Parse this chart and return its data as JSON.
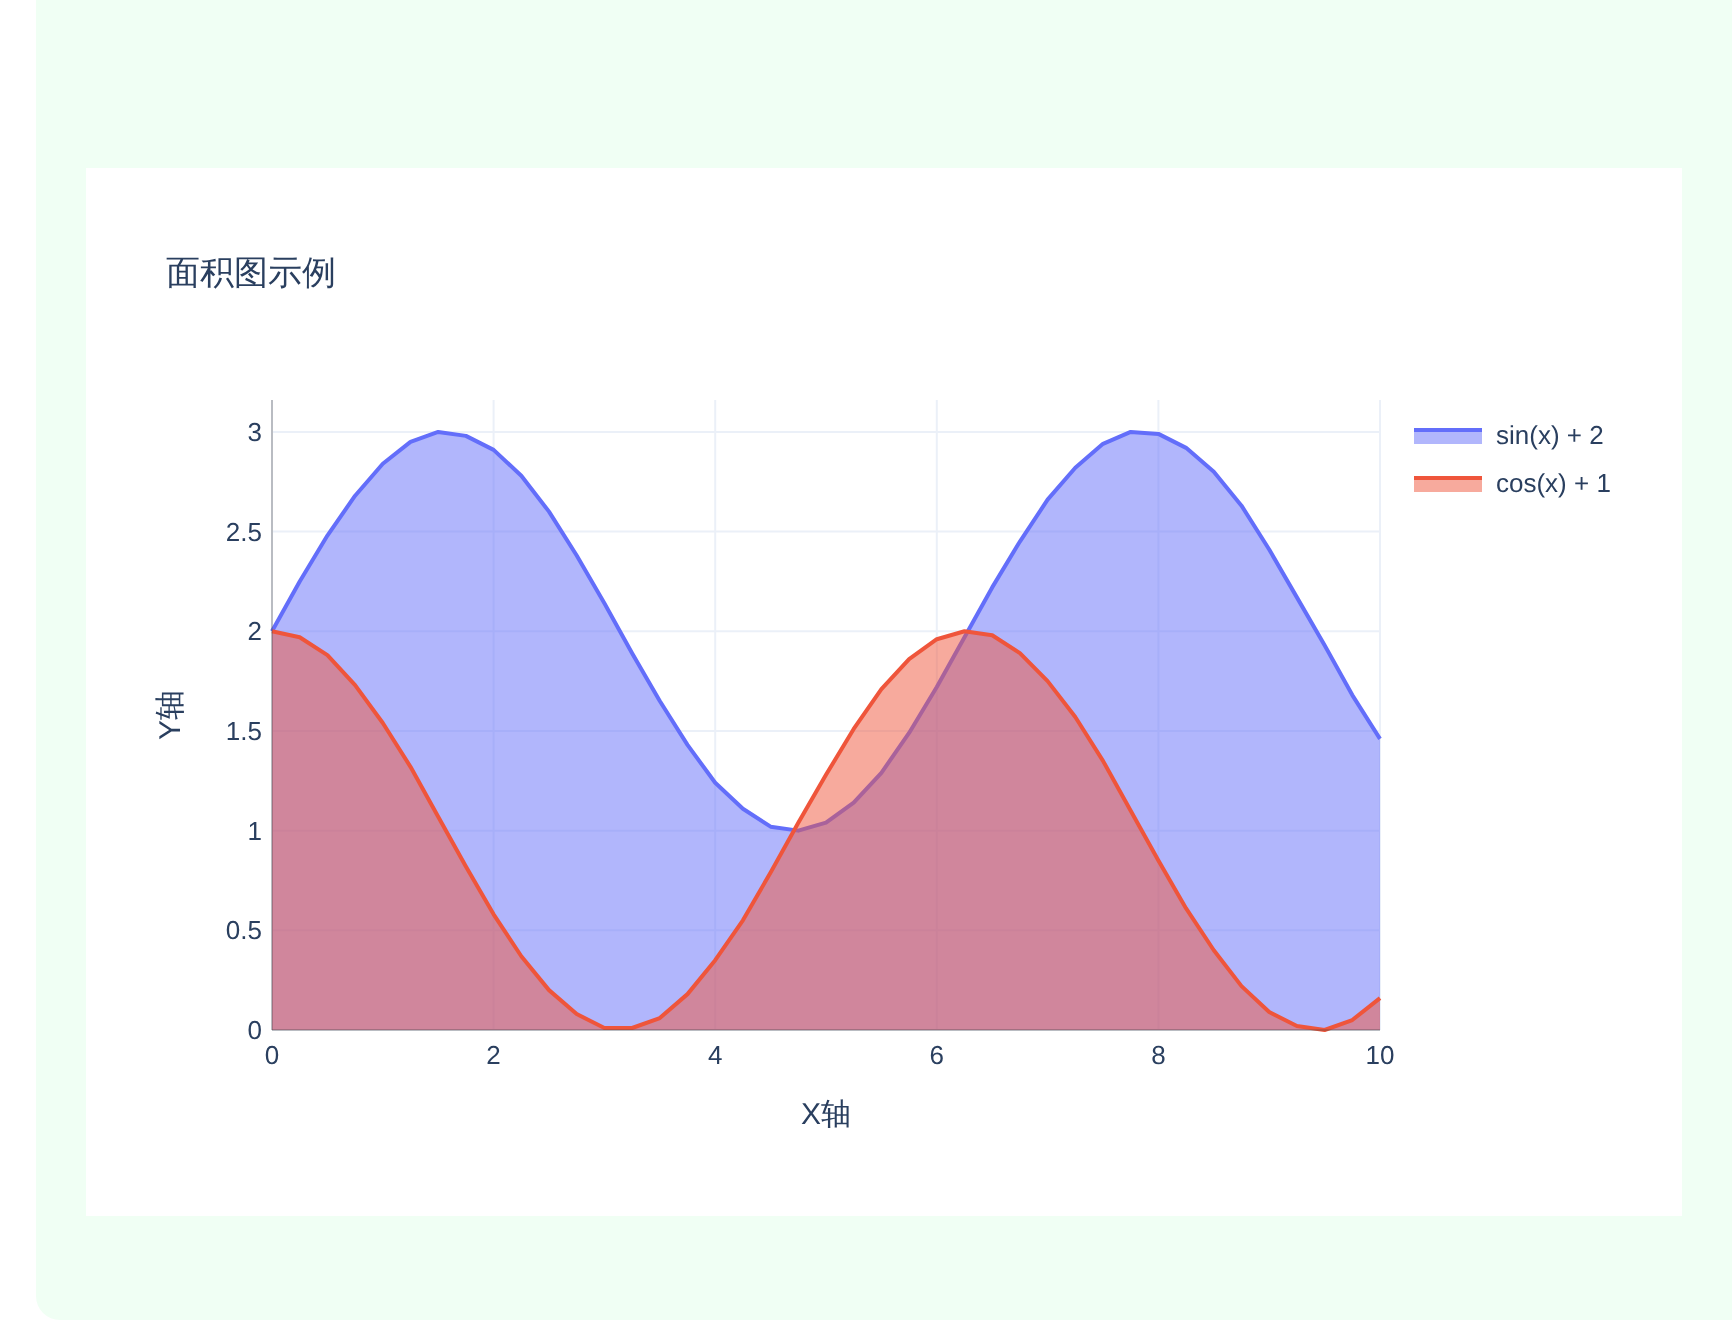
{
  "chart_data": {
    "type": "area",
    "title": "面积图示例",
    "xlabel": "X轴",
    "ylabel": "Y轴",
    "x": [
      0,
      0.25,
      0.5,
      0.75,
      1,
      1.25,
      1.5,
      1.75,
      2,
      2.25,
      2.5,
      2.75,
      3,
      3.25,
      3.5,
      3.75,
      4,
      4.25,
      4.5,
      4.75,
      5,
      5.25,
      5.5,
      5.75,
      6,
      6.25,
      6.5,
      6.75,
      7,
      7.25,
      7.5,
      7.75,
      8,
      8.25,
      8.5,
      8.75,
      9,
      9.25,
      9.5,
      9.75,
      10
    ],
    "series": [
      {
        "name": "sin(x) + 2",
        "color": "#636efa",
        "values": [
          2.0,
          2.25,
          2.48,
          2.68,
          2.84,
          2.95,
          3.0,
          2.98,
          2.91,
          2.78,
          2.6,
          2.38,
          2.14,
          1.89,
          1.65,
          1.43,
          1.24,
          1.11,
          1.02,
          1.0,
          1.04,
          1.14,
          1.29,
          1.49,
          1.72,
          1.97,
          2.22,
          2.45,
          2.66,
          2.82,
          2.94,
          3.0,
          2.99,
          2.92,
          2.8,
          2.63,
          2.41,
          2.17,
          1.93,
          1.68,
          1.46
        ]
      },
      {
        "name": "cos(x) + 1",
        "color": "#ef553b",
        "values": [
          2.0,
          1.97,
          1.88,
          1.73,
          1.54,
          1.32,
          1.07,
          0.82,
          0.58,
          0.37,
          0.2,
          0.08,
          0.01,
          0.01,
          0.06,
          0.18,
          0.35,
          0.55,
          0.79,
          1.04,
          1.28,
          1.51,
          1.71,
          1.86,
          1.96,
          2.0,
          1.98,
          1.89,
          1.75,
          1.57,
          1.35,
          1.1,
          0.85,
          0.61,
          0.4,
          0.22,
          0.09,
          0.02,
          0.0,
          0.05,
          0.16
        ]
      }
    ],
    "xlim": [
      0,
      10
    ],
    "ylim": [
      0,
      3.16
    ],
    "xticks": [
      0,
      2,
      4,
      6,
      8,
      10
    ],
    "yticks": [
      0,
      0.5,
      1,
      1.5,
      2,
      2.5,
      3
    ],
    "grid": true,
    "legend": "top right"
  }
}
